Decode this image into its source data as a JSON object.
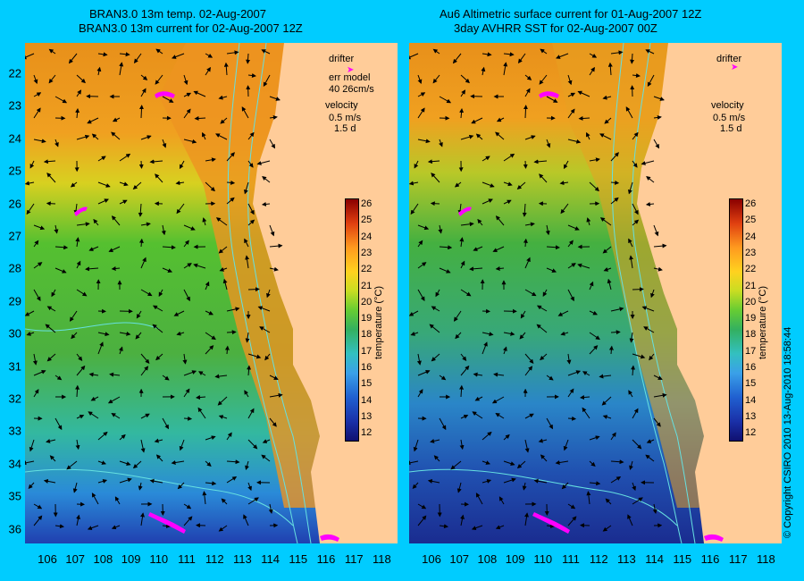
{
  "titles": {
    "left_line1": "BRAN3.0 13m temp. 02-Aug-2007",
    "left_line2": "BRAN3.0 13m current for 02-Aug-2007 12Z",
    "right_line1": "Au6 Altimetric surface current for 01-Aug-2007 12Z",
    "right_line2": "3day AVHRR SST for 02-Aug-2007 00Z"
  },
  "axes": {
    "x_ticks": [
      "106",
      "107",
      "108",
      "109",
      "110",
      "111",
      "112",
      "113",
      "114",
      "115",
      "116",
      "117",
      "118"
    ],
    "y_ticks": [
      "22",
      "23",
      "24",
      "25",
      "26",
      "27",
      "28",
      "29",
      "30",
      "31",
      "32",
      "33",
      "34",
      "35",
      "36"
    ]
  },
  "legend_left": {
    "drifter": "drifter",
    "err_model": "err model",
    "err_value": "40 26cm/s",
    "velocity": "velocity",
    "scale": "0.5 m/s",
    "time": "1.5 d"
  },
  "legend_right": {
    "drifter": "drifter",
    "velocity": "velocity",
    "scale": "0.5 m/s",
    "time": "1.5 d"
  },
  "colorbar": {
    "ticks": [
      "26",
      "25",
      "24",
      "23",
      "22",
      "21",
      "20",
      "19",
      "18",
      "17",
      "16",
      "15",
      "14",
      "13",
      "12"
    ],
    "label": "temperature (°C)",
    "colors": {
      "drifter": "#ff00ff",
      "land": "#ffcc99",
      "contour": "#66e0e0",
      "background": "#00ccff"
    }
  },
  "copyright": "© Copyright CSIRO 2010   13-Aug-2010 18:58:44"
}
